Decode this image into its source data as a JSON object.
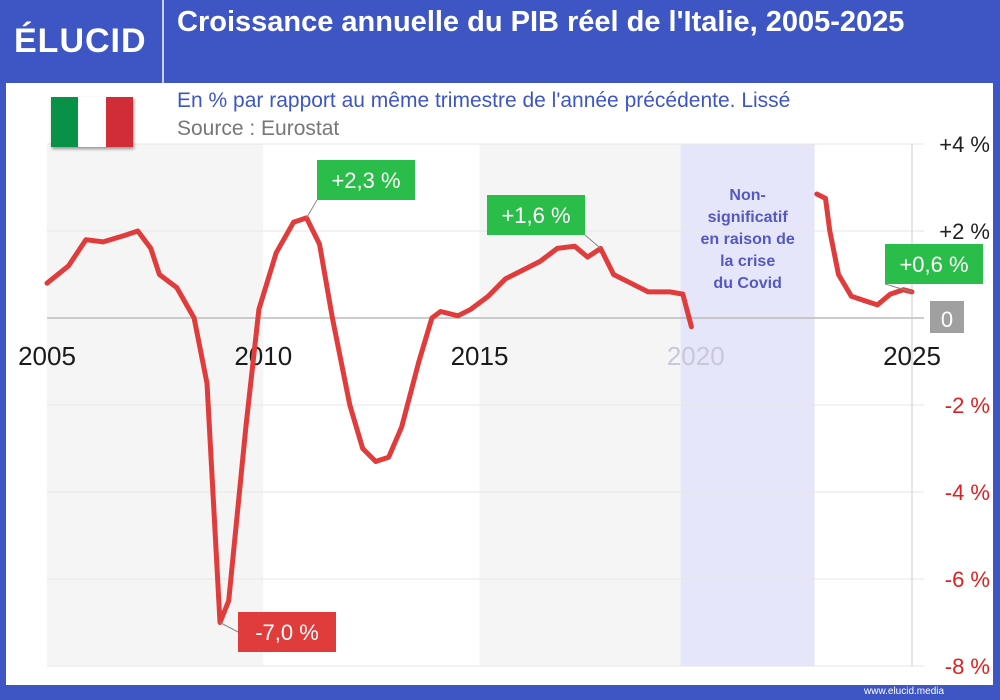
{
  "header": {
    "logo": "ÉLUCID",
    "title": "Croissance annuelle du PIB réel de l'Italie, 2005-2025"
  },
  "subtitle": "En % par rapport au même trimestre de l'année précédente. Lissé",
  "source": "Source : Eurostat",
  "footer": "www.elucid.media",
  "flag_colors": [
    "#089247",
    "#ffffff",
    "#d12d36"
  ],
  "chart_data": {
    "type": "line",
    "title": "Croissance annuelle du PIB réel de l'Italie, 2005-2025",
    "xlim": [
      2005,
      2025
    ],
    "ylim": [
      -8,
      4
    ],
    "x_ticks": [
      "2005",
      "2010",
      "2015",
      "2020",
      "2025"
    ],
    "y_ticks": [
      {
        "v": 4,
        "label": "+4 %"
      },
      {
        "v": 2,
        "label": "+2 %"
      },
      {
        "v": 0,
        "label": "0"
      },
      {
        "v": -2,
        "label": "-2 %"
      },
      {
        "v": -4,
        "label": "-4 %"
      },
      {
        "v": -6,
        "label": "-6 %"
      },
      {
        "v": -8,
        "label": "-8 %"
      }
    ],
    "line_color": "#e03c3c",
    "segments": [
      [
        [
          2005,
          0.8
        ],
        [
          2005.5,
          1.2
        ],
        [
          2005.9,
          1.8
        ],
        [
          2006.3,
          1.75
        ],
        [
          2006.8,
          1.9
        ],
        [
          2007.1,
          2.0
        ],
        [
          2007.4,
          1.6
        ],
        [
          2007.6,
          1.0
        ],
        [
          2008.0,
          0.7
        ],
        [
          2008.4,
          0.0
        ],
        [
          2008.7,
          -1.5
        ],
        [
          2009.0,
          -7.0
        ],
        [
          2009.2,
          -6.5
        ],
        [
          2009.6,
          -2.5
        ],
        [
          2009.9,
          0.2
        ],
        [
          2010.3,
          1.5
        ],
        [
          2010.7,
          2.2
        ],
        [
          2011.0,
          2.3
        ],
        [
          2011.3,
          1.7
        ],
        [
          2011.6,
          0.0
        ],
        [
          2012.0,
          -2.0
        ],
        [
          2012.3,
          -3.0
        ],
        [
          2012.6,
          -3.3
        ],
        [
          2012.9,
          -3.2
        ],
        [
          2013.2,
          -2.5
        ],
        [
          2013.6,
          -1.0
        ],
        [
          2013.9,
          0.0
        ],
        [
          2014.1,
          0.15
        ],
        [
          2014.5,
          0.05
        ],
        [
          2014.8,
          0.2
        ],
        [
          2015.2,
          0.5
        ],
        [
          2015.6,
          0.9
        ],
        [
          2016.0,
          1.1
        ],
        [
          2016.4,
          1.3
        ],
        [
          2016.8,
          1.6
        ],
        [
          2017.2,
          1.65
        ],
        [
          2017.5,
          1.4
        ],
        [
          2017.8,
          1.6
        ],
        [
          2018.1,
          1.0
        ],
        [
          2018.5,
          0.8
        ],
        [
          2018.9,
          0.6
        ],
        [
          2019.4,
          0.6
        ],
        [
          2019.7,
          0.55
        ],
        [
          2019.9,
          -0.2
        ]
      ],
      [
        [
          2022.8,
          2.85
        ],
        [
          2023.0,
          2.75
        ],
        [
          2023.1,
          2.0
        ],
        [
          2023.3,
          1.0
        ],
        [
          2023.6,
          0.5
        ],
        [
          2023.9,
          0.4
        ],
        [
          2024.2,
          0.3
        ],
        [
          2024.5,
          0.55
        ],
        [
          2024.8,
          0.65
        ],
        [
          2025.0,
          0.6
        ]
      ]
    ],
    "shaded_years": [
      [
        2005,
        2010
      ],
      [
        2015,
        2020
      ]
    ],
    "covid_band": {
      "range": [
        2019.65,
        2022.75
      ],
      "color": "#e6e6fb",
      "text": [
        "Non-",
        "significatif",
        "en raison de",
        "la crise",
        "du Covid"
      ]
    },
    "annotations": [
      {
        "x": 2011.0,
        "y": 2.3,
        "label": "+2,3 %",
        "color": "#2bbd4a"
      },
      {
        "x": 2017.8,
        "y": 1.6,
        "label": "+1,6 %",
        "color": "#2bbd4a"
      },
      {
        "x": 2009.0,
        "y": -7.0,
        "label": "-7,0 %",
        "color": "#e03c3c"
      },
      {
        "x": 2025.0,
        "y": 0.6,
        "label": "+0,6 %",
        "color": "#2bbd4a"
      }
    ]
  }
}
